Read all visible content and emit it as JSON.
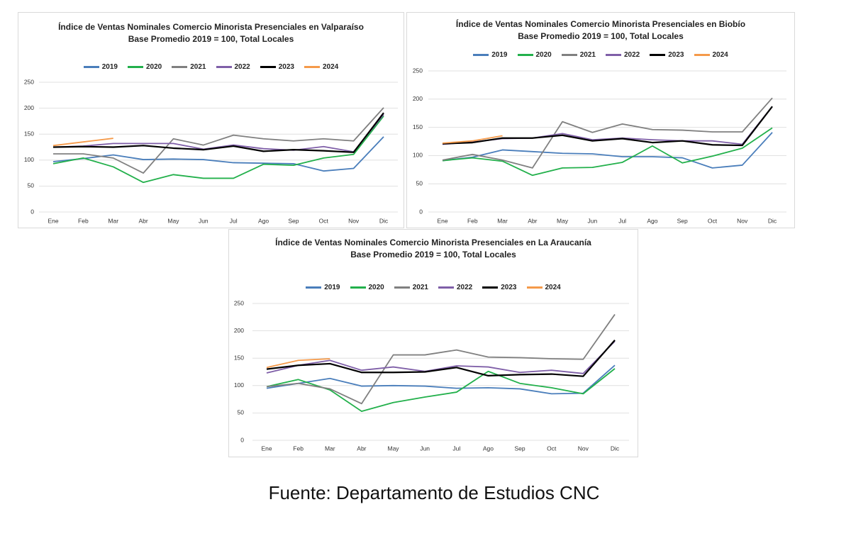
{
  "chart_data": [
    {
      "type": "line",
      "title": "Índice de Ventas Nominales Comercio Minorista Presenciales en Valparaíso",
      "subtitle": "Base Promedio 2019 = 100, Total Locales",
      "categories": [
        "Ene",
        "Feb",
        "Mar",
        "Abr",
        "May",
        "Jun",
        "Jul",
        "Ago",
        "Sep",
        "Oct",
        "Nov",
        "Dic"
      ],
      "ylim": [
        0,
        250
      ],
      "yticks": [
        0,
        50,
        100,
        150,
        200,
        250
      ],
      "grid": true,
      "legend": "top",
      "series": [
        {
          "name": "2019",
          "color": "#4a7ebb",
          "values": [
            97,
            103,
            110,
            101,
            102,
            101,
            95,
            94,
            93,
            79,
            84,
            145
          ]
        },
        {
          "name": "2020",
          "color": "#22b04b",
          "values": [
            93,
            104,
            87,
            57,
            72,
            65,
            65,
            92,
            90,
            104,
            111,
            185
          ]
        },
        {
          "name": "2021",
          "color": "#808080",
          "values": [
            112,
            112,
            104,
            75,
            141,
            129,
            148,
            141,
            137,
            141,
            137,
            201
          ]
        },
        {
          "name": "2022",
          "color": "#7f5fa8",
          "values": [
            125,
            127,
            132,
            132,
            132,
            121,
            129,
            122,
            119,
            126,
            116,
            188
          ]
        },
        {
          "name": "2023",
          "color": "#000000",
          "values": [
            125,
            126,
            125,
            128,
            123,
            120,
            127,
            117,
            120,
            118,
            115,
            191
          ]
        },
        {
          "name": "2024",
          "color": "#f59a4a",
          "values": [
            128,
            135,
            142,
            null,
            null,
            null,
            null,
            null,
            null,
            null,
            null,
            null
          ]
        }
      ]
    },
    {
      "type": "line",
      "title": "Índice de Ventas Nominales Comercio Minorista Presenciales en Biobío",
      "subtitle": "Base Promedio 2019 = 100, Total Locales",
      "categories": [
        "Ene",
        "Feb",
        "Mar",
        "Abr",
        "May",
        "Jun",
        "Jul",
        "Ago",
        "Sep",
        "Oct",
        "Nov",
        "Dic"
      ],
      "ylim": [
        0,
        250
      ],
      "yticks": [
        0,
        50,
        100,
        150,
        200,
        250
      ],
      "grid": true,
      "legend": "top",
      "series": [
        {
          "name": "2019",
          "color": "#4a7ebb",
          "values": [
            91,
            97,
            110,
            107,
            104,
            103,
            98,
            98,
            96,
            78,
            83,
            141
          ]
        },
        {
          "name": "2020",
          "color": "#22b04b",
          "values": [
            91,
            96,
            90,
            65,
            78,
            79,
            88,
            117,
            87,
            99,
            113,
            149
          ]
        },
        {
          "name": "2021",
          "color": "#808080",
          "values": [
            92,
            102,
            92,
            78,
            160,
            141,
            156,
            146,
            145,
            142,
            142,
            202
          ]
        },
        {
          "name": "2022",
          "color": "#7f5fa8",
          "values": [
            120,
            124,
            130,
            131,
            139,
            128,
            131,
            128,
            126,
            126,
            120,
            187
          ]
        },
        {
          "name": "2023",
          "color": "#000000",
          "values": [
            121,
            123,
            131,
            131,
            136,
            126,
            130,
            123,
            126,
            119,
            118,
            187
          ]
        },
        {
          "name": "2024",
          "color": "#f59a4a",
          "values": [
            122,
            126,
            135,
            null,
            null,
            null,
            null,
            null,
            null,
            null,
            null,
            null
          ]
        }
      ]
    },
    {
      "type": "line",
      "title": "Índice de Ventas Nominales Comercio Minorista Presenciales en La Araucanía",
      "subtitle": "Base Promedio 2019 = 100, Total Locales",
      "categories": [
        "Ene",
        "Feb",
        "Mar",
        "Abr",
        "May",
        "Jun",
        "Jul",
        "Ago",
        "Sep",
        "Oct",
        "Nov",
        "Dic"
      ],
      "ylim": [
        0,
        250
      ],
      "yticks": [
        0,
        50,
        100,
        150,
        200,
        250
      ],
      "grid": true,
      "legend": "top",
      "series": [
        {
          "name": "2019",
          "color": "#4a7ebb",
          "values": [
            95,
            104,
            113,
            99,
            100,
            99,
            95,
            96,
            94,
            85,
            86,
            137
          ]
        },
        {
          "name": "2020",
          "color": "#22b04b",
          "values": [
            98,
            111,
            92,
            53,
            69,
            79,
            88,
            126,
            104,
            96,
            85,
            131
          ]
        },
        {
          "name": "2021",
          "color": "#808080",
          "values": [
            98,
            104,
            94,
            67,
            156,
            156,
            165,
            152,
            151,
            149,
            148,
            230
          ]
        },
        {
          "name": "2022",
          "color": "#7f5fa8",
          "values": [
            123,
            137,
            146,
            128,
            134,
            126,
            136,
            134,
            124,
            128,
            122,
            181
          ]
        },
        {
          "name": "2023",
          "color": "#000000",
          "values": [
            130,
            137,
            140,
            124,
            124,
            125,
            133,
            118,
            120,
            121,
            117,
            183
          ]
        },
        {
          "name": "2024",
          "color": "#f59a4a",
          "values": [
            133,
            146,
            149,
            null,
            null,
            null,
            null,
            null,
            null,
            null,
            null,
            null
          ]
        }
      ]
    }
  ],
  "source": "Fuente: Departamento de Estudios CNC"
}
